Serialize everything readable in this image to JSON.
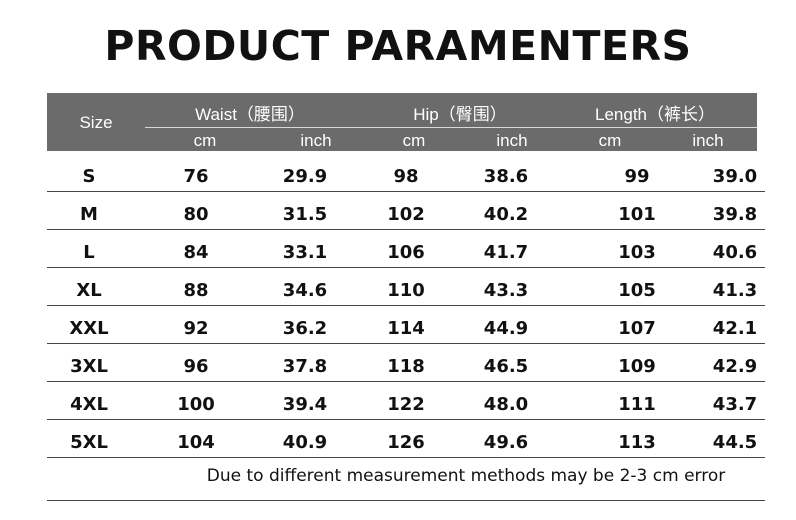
{
  "title": "PRODUCT PARAMENTERS",
  "table": {
    "size_header": "Size",
    "groups": [
      "Waist（腰围）",
      "Hip（臀围）",
      "Length（裤长）"
    ],
    "units": [
      "cm",
      "inch",
      "cm",
      "inch",
      "cm",
      "inch"
    ],
    "rows": [
      [
        "S",
        "76",
        "29.9",
        "98",
        "38.6",
        "99",
        "39.0"
      ],
      [
        "M",
        "80",
        "31.5",
        "102",
        "40.2",
        "101",
        "39.8"
      ],
      [
        "L",
        "84",
        "33.1",
        "106",
        "41.7",
        "103",
        "40.6"
      ],
      [
        "XL",
        "88",
        "34.6",
        "110",
        "43.3",
        "105",
        "41.3"
      ],
      [
        "XXL",
        "92",
        "36.2",
        "114",
        "44.9",
        "107",
        "42.1"
      ],
      [
        "3XL",
        "96",
        "37.8",
        "118",
        "46.5",
        "109",
        "42.9"
      ],
      [
        "4XL",
        "100",
        "39.4",
        "122",
        "48.0",
        "111",
        "43.7"
      ],
      [
        "5XL",
        "104",
        "40.9",
        "126",
        "49.6",
        "113",
        "44.5"
      ]
    ]
  },
  "note": "Due to different measurement methods may be 2-3 cm error"
}
